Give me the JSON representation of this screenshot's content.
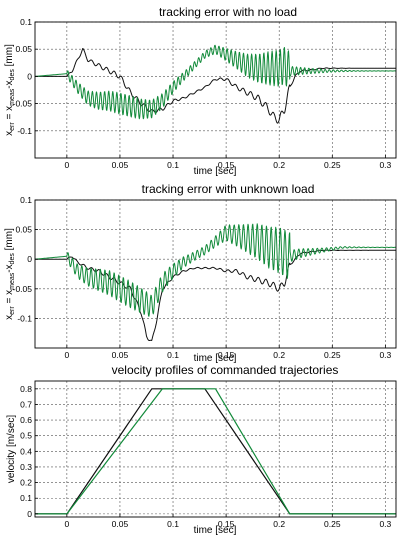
{
  "colors": {
    "black": "#111111",
    "green": "#128a3a"
  },
  "chart_data": [
    {
      "type": "line",
      "title": "tracking error with no load",
      "xlabel": "time [sec]",
      "ylabel": "x err = x meas - x des [mm]",
      "ylabel_parts": {
        "a": "x",
        "a_sub": "err",
        "b": " = x",
        "b_sub": "meas",
        "c": "-x",
        "c_sub": "des",
        "d": " [mm]"
      },
      "xlim": [
        -0.03,
        0.31
      ],
      "ylim": [
        -0.15,
        0.1
      ],
      "xticks": [
        0,
        0.05,
        0.1,
        0.15,
        0.2,
        0.25,
        0.3
      ],
      "xtick_labels": [
        "0",
        "0.05",
        "0.1",
        "0.15",
        "0.2",
        "0.25",
        "0.3"
      ],
      "yticks": [
        -0.1,
        -0.05,
        0,
        0.05,
        0.1
      ],
      "ytick_labels": [
        "-0.1",
        "-0.05",
        "0",
        "0.05",
        "0.1"
      ],
      "grid": true,
      "series": [
        {
          "color": "black",
          "osc": 0.008,
          "oscFreq": 140,
          "x": [
            -0.03,
            0.0,
            0.005,
            0.01,
            0.015,
            0.02,
            0.03,
            0.04,
            0.05,
            0.06,
            0.07,
            0.08,
            0.09,
            0.1,
            0.11,
            0.12,
            0.13,
            0.14,
            0.15,
            0.16,
            0.17,
            0.18,
            0.19,
            0.195,
            0.2,
            0.205,
            0.21,
            0.215,
            0.22,
            0.23,
            0.24,
            0.26,
            0.28,
            0.31
          ],
          "y": [
            0.0,
            0.0,
            0.01,
            0.03,
            0.05,
            0.03,
            0.02,
            0.01,
            0.0,
            -0.03,
            -0.05,
            -0.065,
            -0.06,
            -0.045,
            -0.04,
            -0.03,
            -0.02,
            -0.005,
            -0.005,
            -0.02,
            -0.03,
            -0.04,
            -0.06,
            -0.075,
            -0.08,
            -0.06,
            -0.02,
            0.0,
            0.01,
            0.012,
            0.015,
            0.015,
            0.015,
            0.015
          ]
        },
        {
          "color": "green",
          "osc": 0.035,
          "oscFreq": 260,
          "x": [
            -0.03,
            0.0,
            0.01,
            0.02,
            0.03,
            0.04,
            0.05,
            0.06,
            0.07,
            0.08,
            0.09,
            0.1,
            0.11,
            0.12,
            0.13,
            0.14,
            0.15,
            0.16,
            0.17,
            0.18,
            0.19,
            0.2,
            0.205,
            0.21,
            0.22,
            0.24,
            0.26,
            0.28,
            0.31
          ],
          "y": [
            0.0,
            0.005,
            -0.02,
            -0.04,
            -0.045,
            -0.045,
            -0.05,
            -0.055,
            -0.06,
            -0.06,
            -0.045,
            -0.02,
            0.0,
            0.02,
            0.04,
            0.05,
            0.04,
            0.03,
            0.02,
            0.015,
            0.015,
            0.015,
            0.02,
            0.01,
            0.01,
            0.01,
            0.01,
            0.01,
            0.01
          ]
        }
      ]
    },
    {
      "type": "line",
      "title": "tracking error with unknown load",
      "xlabel": "time [sec]",
      "ylabel": "x err = x meas - x des [mm]",
      "ylabel_parts": {
        "a": "x",
        "a_sub": "err",
        "b": " = x",
        "b_sub": "meas",
        "c": "-x",
        "c_sub": "des",
        "d": " [mm]"
      },
      "xlim": [
        -0.03,
        0.31
      ],
      "ylim": [
        -0.15,
        0.1
      ],
      "xticks": [
        0,
        0.05,
        0.1,
        0.15,
        0.2,
        0.25,
        0.3
      ],
      "xtick_labels": [
        "0",
        "0.05",
        "0.1",
        "0.15",
        "0.2",
        "0.25",
        "0.3"
      ],
      "yticks": [
        -0.1,
        -0.05,
        0,
        0.05,
        0.1
      ],
      "ytick_labels": [
        "-0.1",
        "-0.05",
        "0",
        "0.05",
        "0.1"
      ],
      "grid": true,
      "series": [
        {
          "color": "black",
          "osc": 0.006,
          "oscFreq": 140,
          "x": [
            -0.03,
            0.0,
            0.005,
            0.01,
            0.02,
            0.03,
            0.04,
            0.05,
            0.06,
            0.07,
            0.075,
            0.08,
            0.085,
            0.09,
            0.1,
            0.11,
            0.12,
            0.13,
            0.14,
            0.15,
            0.16,
            0.17,
            0.18,
            0.19,
            0.2,
            0.205,
            0.21,
            0.22,
            0.24,
            0.26,
            0.28,
            0.31
          ],
          "y": [
            0.0,
            0.0,
            0.005,
            -0.005,
            -0.015,
            -0.02,
            -0.03,
            -0.04,
            -0.05,
            -0.09,
            -0.13,
            -0.14,
            -0.1,
            -0.05,
            -0.03,
            -0.02,
            -0.015,
            -0.015,
            -0.015,
            -0.02,
            -0.02,
            -0.03,
            -0.035,
            -0.04,
            -0.05,
            -0.04,
            -0.01,
            0.01,
            0.015,
            0.015,
            0.015,
            0.015
          ]
        },
        {
          "color": "green",
          "osc": 0.04,
          "oscFreq": 230,
          "x": [
            -0.03,
            0.0,
            0.01,
            0.02,
            0.03,
            0.04,
            0.05,
            0.06,
            0.07,
            0.08,
            0.09,
            0.1,
            0.11,
            0.12,
            0.13,
            0.14,
            0.15,
            0.16,
            0.17,
            0.18,
            0.19,
            0.2,
            0.205,
            0.21,
            0.22,
            0.24,
            0.26,
            0.28,
            0.31
          ],
          "y": [
            0.0,
            0.005,
            -0.02,
            -0.03,
            -0.035,
            -0.04,
            -0.05,
            -0.06,
            -0.07,
            -0.08,
            -0.04,
            -0.02,
            -0.005,
            0.005,
            0.015,
            0.03,
            0.045,
            0.04,
            0.035,
            0.03,
            0.02,
            0.015,
            0.01,
            0.005,
            0.01,
            0.015,
            0.02,
            0.02,
            0.02
          ]
        }
      ]
    },
    {
      "type": "line",
      "title": "velocity profiles of commanded trajectories",
      "xlabel": "time [sec]",
      "ylabel": "velocity [m/sec]",
      "xlim": [
        -0.03,
        0.31
      ],
      "ylim": [
        -0.02,
        0.85
      ],
      "xticks": [
        0,
        0.05,
        0.1,
        0.15,
        0.2,
        0.25,
        0.3
      ],
      "xtick_labels": [
        "0",
        "0.05",
        "0.1",
        "0.15",
        "0.2",
        "0.25",
        "0.3"
      ],
      "yticks": [
        0,
        0.1,
        0.2,
        0.3,
        0.4,
        0.5,
        0.6,
        0.7,
        0.8
      ],
      "ytick_labels": [
        "0",
        "0.1",
        "0.2",
        "0.3",
        "0.4",
        "0.5",
        "0.6",
        "0.7",
        "0.8"
      ],
      "grid": true,
      "series": [
        {
          "color": "black",
          "x": [
            -0.03,
            0.0,
            0.08,
            0.13,
            0.21,
            0.31
          ],
          "y": [
            0.0,
            0.0,
            0.8,
            0.8,
            0.0,
            0.0
          ]
        },
        {
          "color": "green",
          "x": [
            -0.03,
            0.0,
            0.09,
            0.14,
            0.21,
            0.31
          ],
          "y": [
            0.0,
            0.0,
            0.8,
            0.8,
            0.0,
            0.0
          ]
        }
      ]
    }
  ]
}
